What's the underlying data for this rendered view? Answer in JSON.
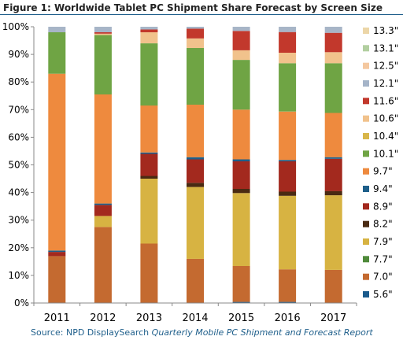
{
  "header": {
    "title": "Figure 1: Worldwide Tablet PC Shipment Share Forecast by Screen Size"
  },
  "footer": {
    "source_prefix": "Source: NPD DisplaySearch ",
    "source_report": "Quarterly Mobile PC Shipment and Forecast Report"
  },
  "chart_data": {
    "type": "bar",
    "stacked": true,
    "categories": [
      "2011",
      "2012",
      "2013",
      "2014",
      "2015",
      "2016",
      "2017"
    ],
    "y_tick_labels": [
      "0%",
      "10%",
      "20%",
      "30%",
      "40%",
      "50%",
      "60%",
      "70%",
      "80%",
      "90%",
      "100%"
    ],
    "ylim": [
      0,
      100
    ],
    "grid": false,
    "legend_position": "right",
    "series": [
      {
        "name": "5.6\"",
        "color": "#1a5a8c",
        "values": [
          0,
          0,
          0,
          0,
          0.4,
          0.4,
          0
        ]
      },
      {
        "name": "7.0\"",
        "color": "#c46a30",
        "values": [
          17,
          27.5,
          21.5,
          16,
          13,
          11.8,
          12
        ]
      },
      {
        "name": "7.7\"",
        "color": "#4f8a3a",
        "values": [
          0,
          0,
          0,
          0,
          0,
          0,
          0
        ]
      },
      {
        "name": "7.9\"",
        "color": "#d7b342",
        "values": [
          0,
          4,
          23.5,
          26,
          26.4,
          26.6,
          27
        ]
      },
      {
        "name": "8.2\"",
        "color": "#4a2a12",
        "values": [
          0,
          0,
          1,
          1.5,
          1.5,
          1.5,
          1.5
        ]
      },
      {
        "name": "8.9\"",
        "color": "#a3291e",
        "values": [
          1.5,
          4,
          8,
          8.5,
          10,
          11,
          11.7
        ]
      },
      {
        "name": "9.4\"",
        "color": "#1e5f8a",
        "values": [
          0.5,
          0.5,
          0.5,
          0.8,
          0.7,
          0.5,
          0.6
        ]
      },
      {
        "name": "9.7\"",
        "color": "#ee8a3e",
        "values": [
          64,
          39.5,
          17,
          19,
          18,
          17.5,
          16
        ]
      },
      {
        "name": "10.1\"",
        "color": "#6fa444",
        "values": [
          15,
          21.5,
          22.5,
          20.5,
          18,
          17.5,
          18
        ]
      },
      {
        "name": "10.4\"",
        "color": "#d8b64a",
        "values": [
          0,
          0,
          0,
          0,
          0,
          0,
          0
        ]
      },
      {
        "name": "10.6\"",
        "color": "#f1c28c",
        "values": [
          0,
          0.5,
          4,
          3.5,
          3.5,
          3.8,
          4
        ]
      },
      {
        "name": "11.6\"",
        "color": "#c2382c",
        "values": [
          0,
          0.5,
          1,
          3.5,
          7,
          7.5,
          7
        ]
      },
      {
        "name": "12.1\"",
        "color": "#a5b4c8",
        "values": [
          0,
          1,
          0,
          0,
          0,
          0,
          0
        ]
      },
      {
        "name": "12.5\"",
        "color": "#f4c8a0",
        "values": [
          0,
          0,
          0,
          0,
          0,
          0,
          0
        ]
      },
      {
        "name": "13.1\"",
        "color": "#b2cfa0",
        "values": [
          0,
          0,
          0,
          0,
          0,
          0,
          0
        ]
      },
      {
        "name": "13.3\"",
        "color": "#ecd6a8",
        "values": [
          0,
          0,
          0,
          0,
          0,
          0,
          0
        ]
      }
    ]
  }
}
